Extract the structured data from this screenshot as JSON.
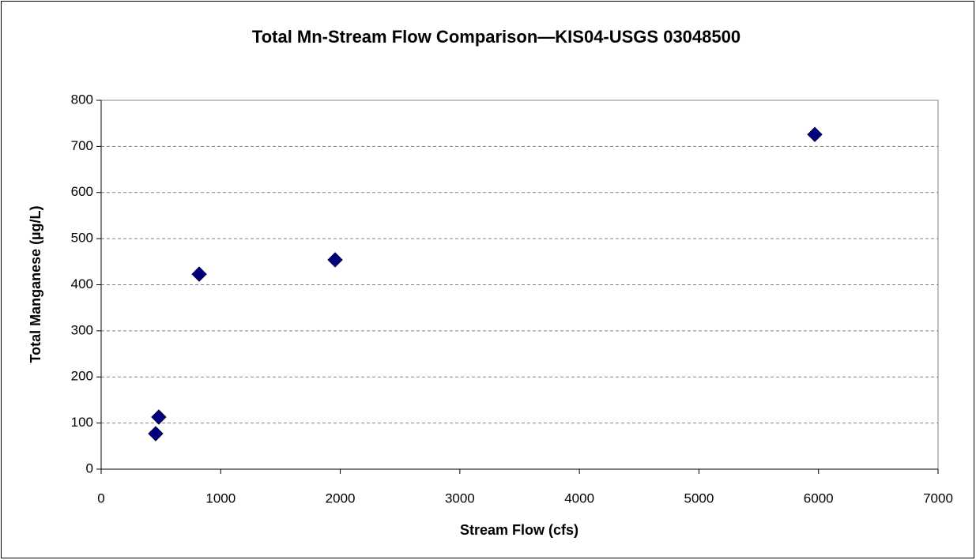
{
  "chart_data": {
    "type": "scatter",
    "title": "Total Mn-Stream Flow Comparison—KIS04-USGS 03048500",
    "x_label": "Stream Flow (cfs)",
    "y_label": "Total Manganese (µg/L)",
    "series": [
      {
        "color": "#000080",
        "x": [
          456,
          482,
          820,
          1957,
          5969
        ],
        "values": [
          77,
          113,
          423,
          454,
          726
        ]
      }
    ],
    "xlim": [
      0,
      7000
    ],
    "xticks": [
      0,
      1000,
      2000,
      3000,
      4000,
      5000,
      6000,
      7000
    ],
    "ylim": [
      0,
      800
    ],
    "yticks": [
      0,
      100,
      200,
      300,
      400,
      500,
      600,
      700,
      800
    ],
    "grid": true
  }
}
